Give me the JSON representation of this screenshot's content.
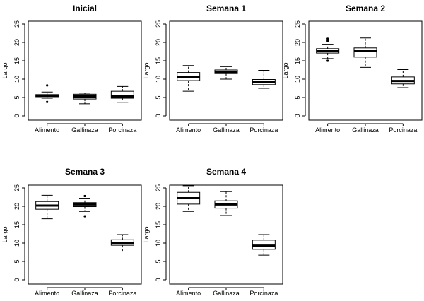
{
  "chart_data": [
    {
      "type": "boxplot",
      "title": "Inicial",
      "ylabel": "Largo",
      "ylim": [
        0,
        25
      ],
      "yticks": [
        0,
        5,
        10,
        15,
        20,
        25
      ],
      "categories": [
        "Alimento",
        "Gallinaza",
        "Porcinaza"
      ],
      "boxes": [
        {
          "name": "Alimento",
          "whisker_low": 4.8,
          "q1": 5.2,
          "median": 5.5,
          "q3": 5.8,
          "whisker_high": 6.5,
          "outliers": [
            3.8,
            8.3
          ]
        },
        {
          "name": "Gallinaza",
          "whisker_low": 3.3,
          "q1": 4.6,
          "median": 5.3,
          "q3": 5.9,
          "whisker_high": 6.2,
          "outliers": []
        },
        {
          "name": "Porcinaza",
          "whisker_low": 3.7,
          "q1": 4.8,
          "median": 5.3,
          "q3": 6.7,
          "whisker_high": 8.0,
          "outliers": []
        }
      ]
    },
    {
      "type": "boxplot",
      "title": "Semana 1",
      "ylabel": "Largo",
      "ylim": [
        0,
        25
      ],
      "yticks": [
        0,
        5,
        10,
        15,
        20,
        25
      ],
      "categories": [
        "Alimento",
        "Gallinaza",
        "Porcinaza"
      ],
      "boxes": [
        {
          "name": "Alimento",
          "whisker_low": 6.7,
          "q1": 9.6,
          "median": 10.5,
          "q3": 11.8,
          "whisker_high": 13.7,
          "outliers": []
        },
        {
          "name": "Gallinaza",
          "whisker_low": 10.0,
          "q1": 11.5,
          "median": 12.0,
          "q3": 12.5,
          "whisker_high": 13.4,
          "outliers": []
        },
        {
          "name": "Porcinaza",
          "whisker_low": 7.5,
          "q1": 8.5,
          "median": 9.2,
          "q3": 9.9,
          "whisker_high": 12.4,
          "outliers": []
        }
      ]
    },
    {
      "type": "boxplot",
      "title": "Semana 2",
      "ylabel": "Largo",
      "ylim": [
        0,
        25
      ],
      "yticks": [
        0,
        5,
        10,
        15,
        20,
        25
      ],
      "categories": [
        "Alimento",
        "Gallinaza",
        "Porcinaza"
      ],
      "boxes": [
        {
          "name": "Alimento",
          "whisker_low": 15.6,
          "q1": 17.1,
          "median": 17.6,
          "q3": 18.3,
          "whisker_high": 19.5,
          "outliers": [
            15.0,
            20.4,
            21.0
          ]
        },
        {
          "name": "Gallinaza",
          "whisker_low": 13.2,
          "q1": 16.0,
          "median": 17.6,
          "q3": 18.5,
          "whisker_high": 21.2,
          "outliers": []
        },
        {
          "name": "Porcinaza",
          "whisker_low": 7.7,
          "q1": 8.7,
          "median": 9.5,
          "q3": 10.6,
          "whisker_high": 12.6,
          "outliers": []
        }
      ]
    },
    {
      "type": "boxplot",
      "title": "Semana 3",
      "ylabel": "Largo",
      "ylim": [
        0,
        25
      ],
      "yticks": [
        0,
        5,
        10,
        15,
        20,
        25
      ],
      "categories": [
        "Alimento",
        "Gallinaza",
        "Porcinaza"
      ],
      "boxes": [
        {
          "name": "Alimento",
          "whisker_low": 16.6,
          "q1": 19.2,
          "median": 20.2,
          "q3": 21.3,
          "whisker_high": 23.0,
          "outliers": []
        },
        {
          "name": "Gallinaza",
          "whisker_low": 18.6,
          "q1": 19.9,
          "median": 20.5,
          "q3": 21.0,
          "whisker_high": 22.2,
          "outliers": [
            17.3,
            22.8
          ]
        },
        {
          "name": "Porcinaza",
          "whisker_low": 7.6,
          "q1": 9.4,
          "median": 10.0,
          "q3": 10.9,
          "whisker_high": 12.3,
          "outliers": []
        }
      ]
    },
    {
      "type": "boxplot",
      "title": "Semana 4",
      "ylabel": "Largo",
      "ylim": [
        0,
        25
      ],
      "yticks": [
        0,
        5,
        10,
        15,
        20,
        25
      ],
      "categories": [
        "Alimento",
        "Gallinaza",
        "Porcinaza"
      ],
      "boxes": [
        {
          "name": "Alimento",
          "whisker_low": 18.6,
          "q1": 20.6,
          "median": 22.2,
          "q3": 23.8,
          "whisker_high": 25.6,
          "outliers": []
        },
        {
          "name": "Gallinaza",
          "whisker_low": 17.5,
          "q1": 19.5,
          "median": 20.5,
          "q3": 21.5,
          "whisker_high": 24.0,
          "outliers": []
        },
        {
          "name": "Porcinaza",
          "whisker_low": 6.7,
          "q1": 8.3,
          "median": 9.3,
          "q3": 10.8,
          "whisker_high": 12.3,
          "outliers": []
        }
      ]
    }
  ]
}
